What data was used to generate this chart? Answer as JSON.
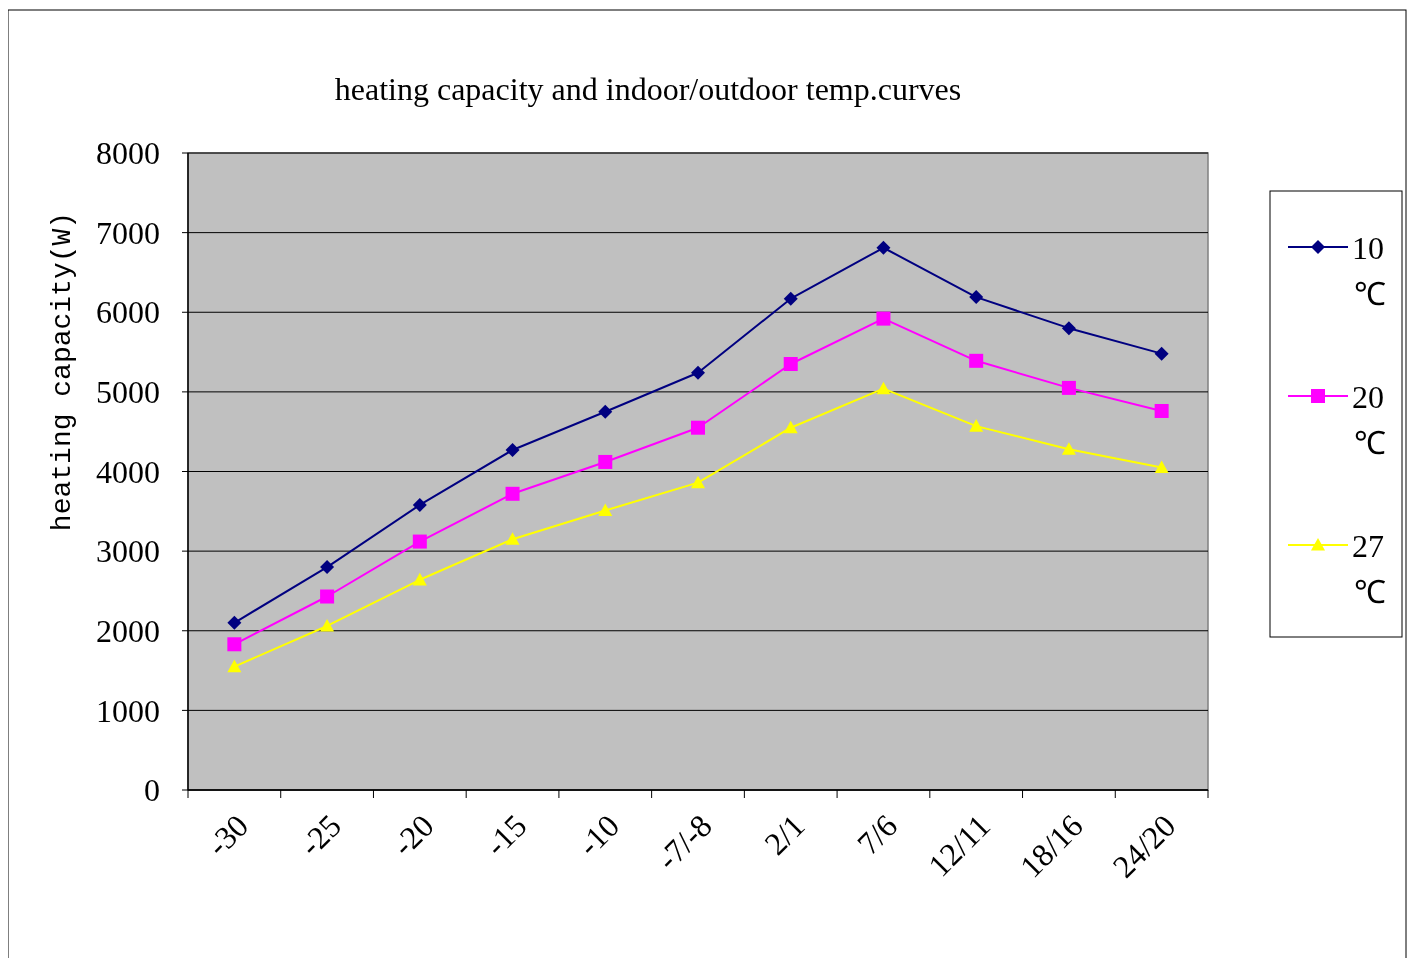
{
  "chart_data": {
    "type": "line",
    "title": "heating capacity and indoor/outdoor temp.curves",
    "ylabel": "heating capacity(W)",
    "categories": [
      "-30",
      "-25",
      "-20",
      "-15",
      "-10",
      "-7/-8",
      "2/1",
      "7/6",
      "12/11",
      "18/16",
      "24/20"
    ],
    "series": [
      {
        "name": "10℃",
        "color": "#000080",
        "marker": "diamond",
        "values": [
          2100,
          2800,
          3580,
          4270,
          4750,
          5240,
          6170,
          6810,
          6190,
          5800,
          5480
        ]
      },
      {
        "name": "20℃",
        "color": "#ff00ff",
        "marker": "square",
        "values": [
          1830,
          2430,
          3120,
          3720,
          4120,
          4550,
          5350,
          5920,
          5390,
          5050,
          4760
        ]
      },
      {
        "name": "27℃",
        "color": "#ffff00",
        "marker": "triangle",
        "values": [
          1550,
          2060,
          2640,
          3150,
          3510,
          3860,
          4550,
          5040,
          4570,
          4280,
          4050
        ]
      }
    ],
    "ylim": [
      0,
      8000
    ],
    "yticks": [
      0,
      1000,
      2000,
      3000,
      4000,
      5000,
      6000,
      7000,
      8000
    ],
    "grid": "y",
    "legend": "right"
  }
}
